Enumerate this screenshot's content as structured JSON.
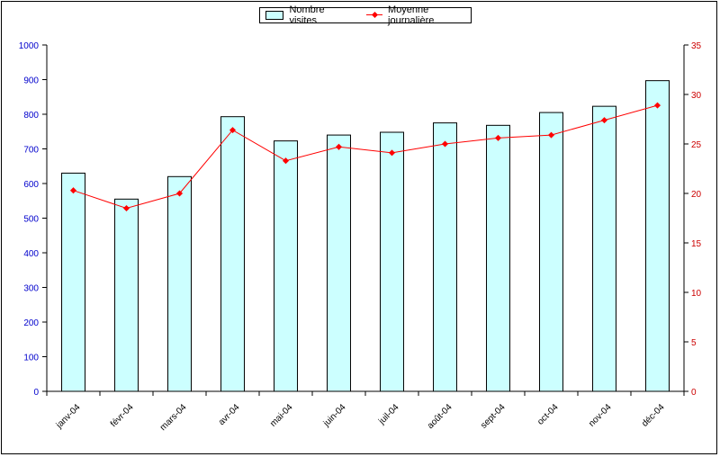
{
  "chart_data": {
    "type": "bar",
    "categories": [
      "janv-04",
      "févr-04",
      "mars-04",
      "avr-04",
      "mai-04",
      "juin-04",
      "juil-04",
      "août-04",
      "sept-04",
      "oct-04",
      "nov-04",
      "déc-04"
    ],
    "series": [
      {
        "name": "Nombre visites",
        "type": "bar",
        "axis": "left",
        "values": [
          630,
          555,
          620,
          793,
          723,
          740,
          748,
          775,
          768,
          805,
          823,
          897
        ]
      },
      {
        "name": "Moyenne journalière",
        "type": "line",
        "axis": "right",
        "values": [
          20.3,
          18.5,
          20.0,
          26.4,
          23.3,
          24.7,
          24.1,
          25.0,
          25.6,
          25.9,
          27.4,
          28.9
        ]
      }
    ],
    "left_axis": {
      "ylim": [
        0,
        1000
      ],
      "ticks": [
        "0",
        "100",
        "200",
        "300",
        "400",
        "500",
        "600",
        "700",
        "800",
        "900",
        "1000"
      ]
    },
    "right_axis": {
      "ylim": [
        0,
        35
      ],
      "ticks": [
        "0",
        "5",
        "10",
        "15",
        "20",
        "25",
        "30",
        "35"
      ]
    },
    "grid": false,
    "legend_position": "top-center",
    "colors": {
      "bar_fill": "#ccffff",
      "bar_edge": "#000000",
      "line": "#ff0000",
      "left_axis_text": "#0000cc",
      "right_axis_text": "#cc0000"
    },
    "title": "",
    "xlabel": "",
    "ylabel": "",
    "y2label": ""
  }
}
